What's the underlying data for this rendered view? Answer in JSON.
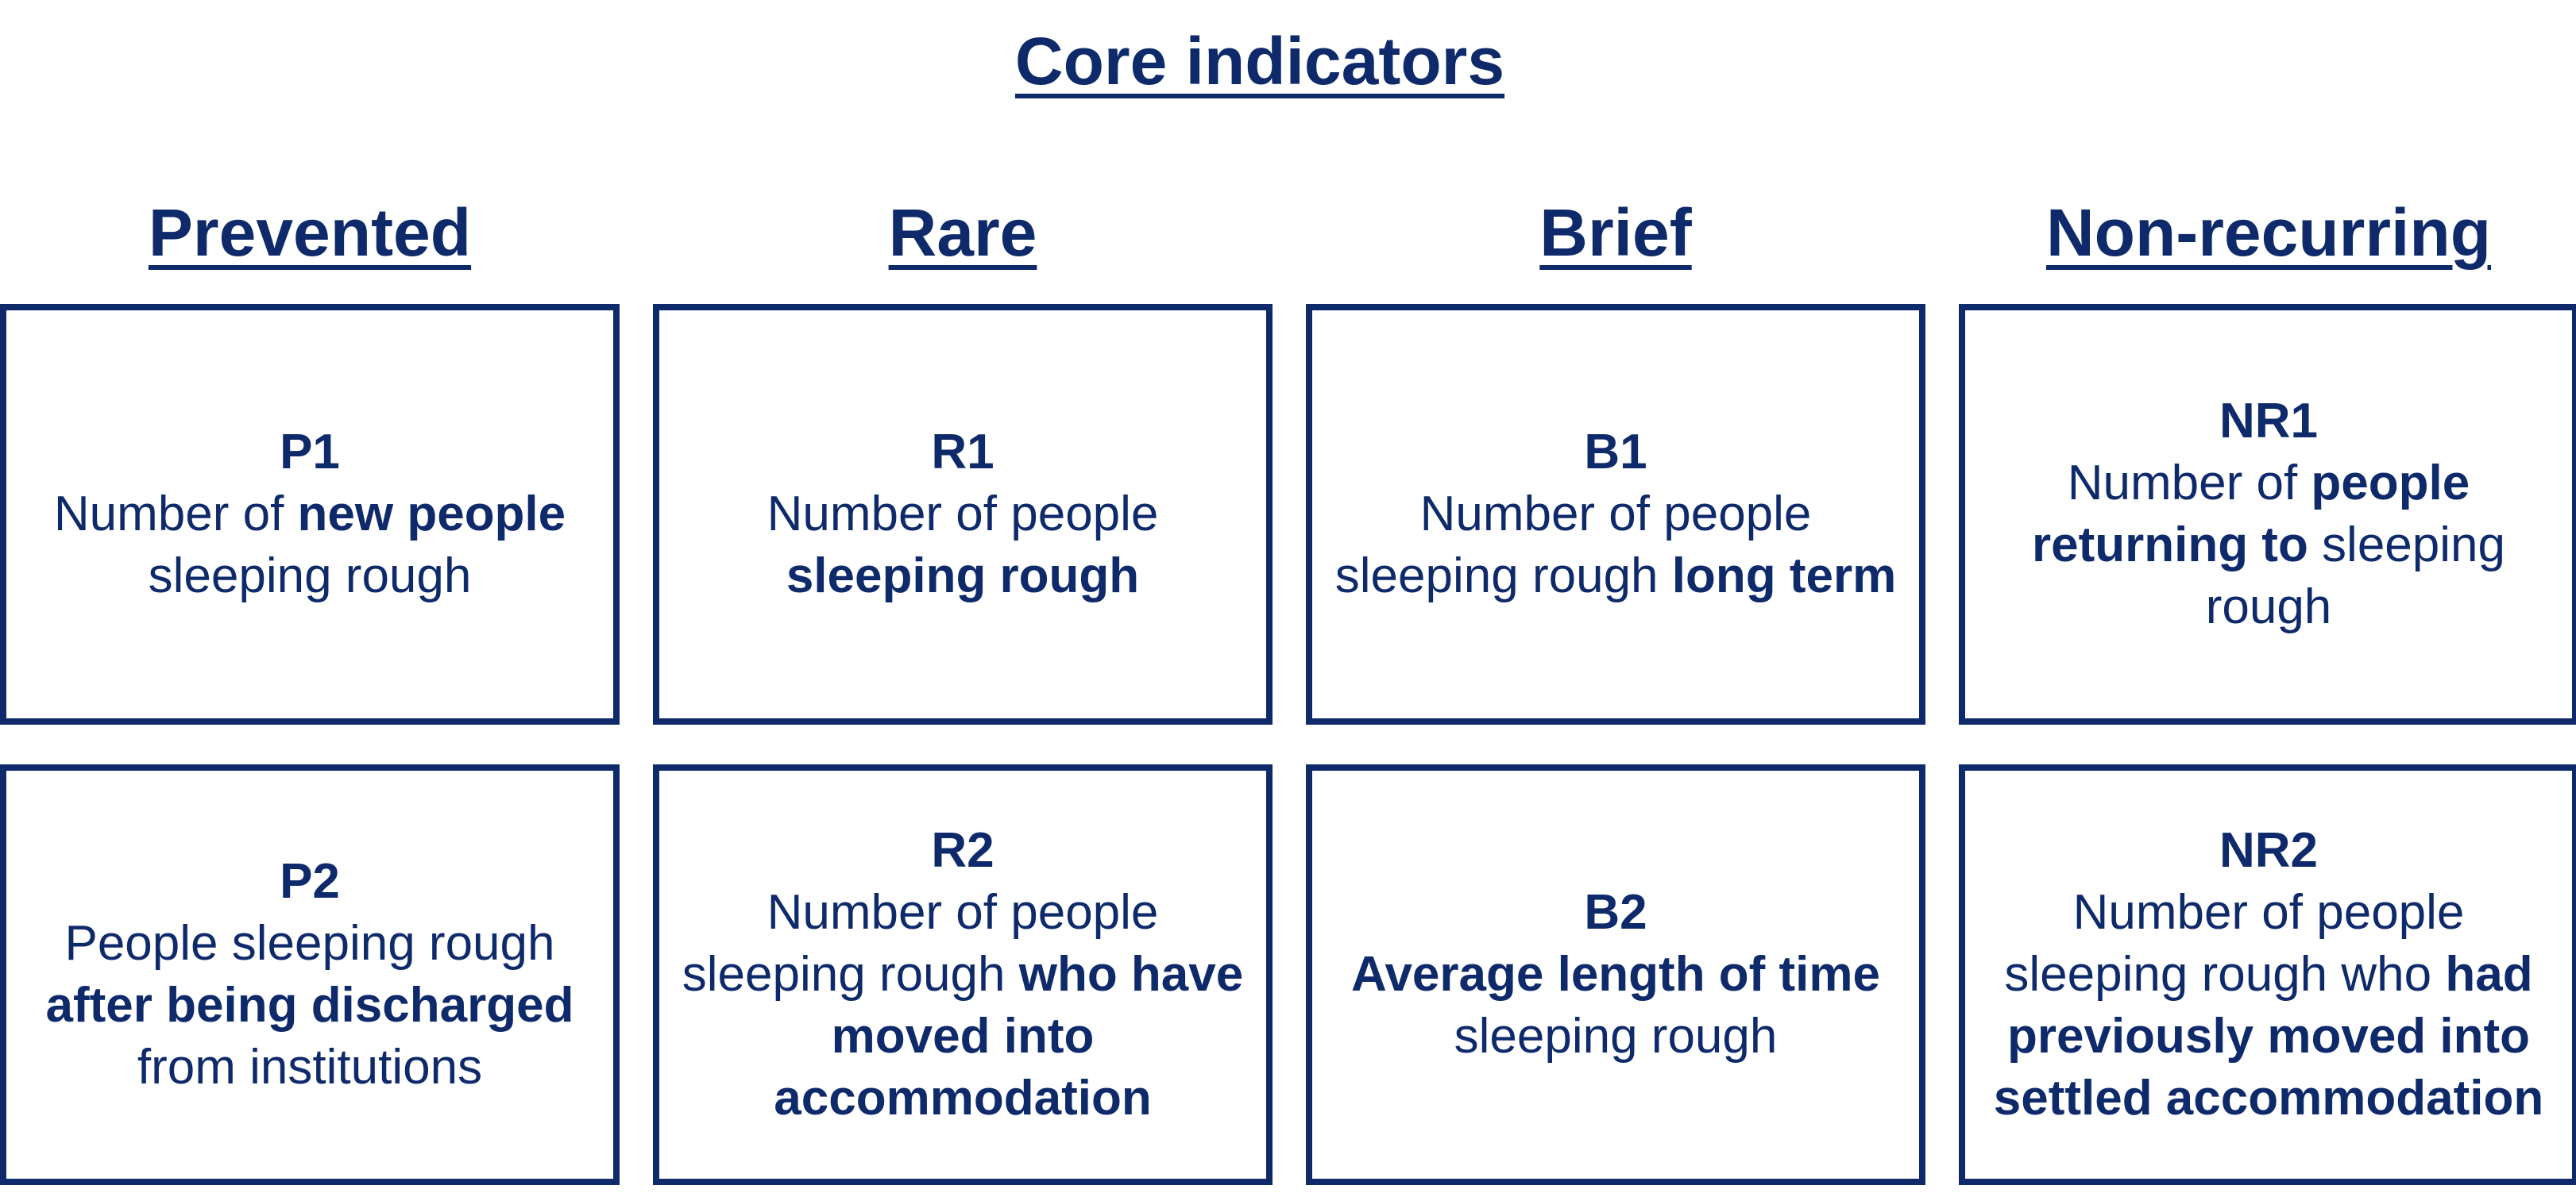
{
  "title": "Core indicators",
  "columns": [
    {
      "header": "Prevented",
      "indicators": [
        {
          "code": "P1",
          "parts": [
            [
              "Number of ",
              false
            ],
            [
              "new people",
              true
            ],
            [
              " sleeping rough",
              false
            ]
          ]
        },
        {
          "code": "P2",
          "parts": [
            [
              "People sleeping rough ",
              false
            ],
            [
              "after being discharged",
              true
            ],
            [
              " from institutions",
              false
            ]
          ]
        }
      ]
    },
    {
      "header": "Rare",
      "indicators": [
        {
          "code": "R1",
          "parts": [
            [
              "Number of people ",
              false
            ],
            [
              "sleeping rough",
              true
            ]
          ]
        },
        {
          "code": "R2",
          "parts": [
            [
              "Number of people sleeping rough ",
              false
            ],
            [
              "who have moved into accommodation",
              true
            ]
          ]
        }
      ]
    },
    {
      "header": "Brief",
      "indicators": [
        {
          "code": "B1",
          "parts": [
            [
              "Number of people sleeping rough ",
              false
            ],
            [
              "long term",
              true
            ]
          ]
        },
        {
          "code": "B2",
          "parts": [
            [
              "Average length of time",
              true
            ],
            [
              " sleeping rough",
              false
            ]
          ]
        }
      ]
    },
    {
      "header": "Non-recurring",
      "indicators": [
        {
          "code": "NR1",
          "parts": [
            [
              "Number of ",
              false
            ],
            [
              "people returning to",
              true
            ],
            [
              " sleeping rough",
              false
            ]
          ]
        },
        {
          "code": "NR2",
          "parts": [
            [
              "Number of people sleeping rough who ",
              false
            ],
            [
              "had previously moved into settled accommodation",
              true
            ]
          ]
        }
      ]
    }
  ]
}
